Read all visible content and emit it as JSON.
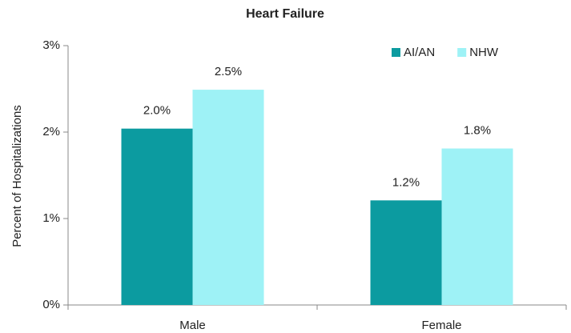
{
  "chart_data": {
    "type": "bar",
    "title": "Heart Failure",
    "y_label": "Percent of Hospitalizations",
    "categories": [
      "Male",
      "Female"
    ],
    "series": [
      {
        "name": "AI/AN",
        "color": "#0c9ba0",
        "values": [
          2.04,
          1.21
        ],
        "value_labels": [
          "2.0%",
          "1.2%"
        ]
      },
      {
        "name": "NHW",
        "color": "#9ef2f6",
        "values": [
          2.49,
          1.81
        ],
        "value_labels": [
          "2.5%",
          "1.8%"
        ]
      }
    ],
    "ylim": [
      0,
      3
    ],
    "yticks": [
      {
        "value": 0,
        "label": "0%"
      },
      {
        "value": 1,
        "label": "1%"
      },
      {
        "value": 2,
        "label": "2%"
      },
      {
        "value": 3,
        "label": "3%"
      }
    ],
    "legend": "top-right",
    "grid": false
  }
}
